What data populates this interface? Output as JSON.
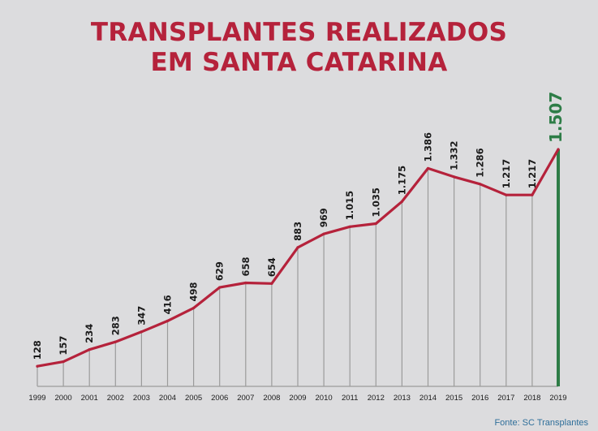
{
  "title_line1": "TRANSPLANTES REALIZADOS",
  "title_line2": "EM SANTA CATARINA",
  "source": "Fonte: SC Transplantes",
  "colors": {
    "line": "#b5223b",
    "highlight": "#2e7d47",
    "grid": "#9b9b9b",
    "text": "#1a1a1a"
  },
  "chart_data": {
    "type": "line",
    "title": "TRANSPLANTES REALIZADOS EM SANTA CATARINA",
    "categories": [
      "1999",
      "2000",
      "2001",
      "2002",
      "2003",
      "2004",
      "2005",
      "2006",
      "2007",
      "2008",
      "2009",
      "2010",
      "2011",
      "2012",
      "2013",
      "2014",
      "2015",
      "2016",
      "2017",
      "2018",
      "2019"
    ],
    "values": [
      128,
      157,
      234,
      283,
      347,
      416,
      498,
      629,
      658,
      654,
      883,
      969,
      1015,
      1035,
      1175,
      1386,
      1332,
      1286,
      1217,
      1217,
      1507
    ],
    "labels": [
      "128",
      "157",
      "234",
      "283",
      "347",
      "416",
      "498",
      "629",
      "658",
      "654",
      "883",
      "969",
      "1.015",
      "1.035",
      "1.175",
      "1.386",
      "1.332",
      "1.286",
      "1.217",
      "1.217",
      "1.507"
    ],
    "highlight_last": true,
    "grid": "vertical drop lines",
    "ylim": [
      0,
      1507
    ]
  }
}
